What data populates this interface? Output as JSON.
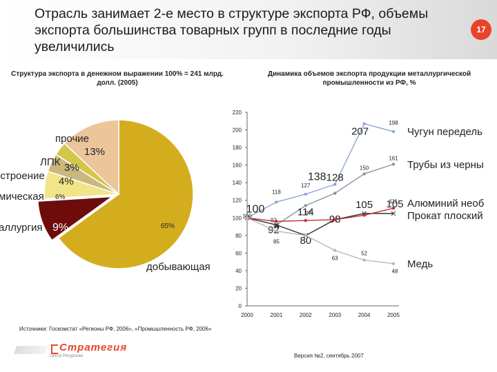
{
  "header": {
    "title": "Отрасль занимает 2-е место в структуре экспорта РФ, объемы экспорта большинства товарных групп в последние годы увеличились",
    "slide_number": "17"
  },
  "pie_subtitle": "Структура экспорта в денежном выражении 100% = 241 млрд. долл. (2005)",
  "line_subtitle": "Динамика объемов экспорта продукции металлургической промышленности из РФ, %",
  "chart_data": [
    {
      "type": "pie",
      "title": "Структура экспорта в денежном выражении 100% = 241 млрд. долл. (2005)",
      "slices": [
        {
          "label": "добывающая",
          "value": 65,
          "value_label": "65%",
          "color": "#d4ad1f"
        },
        {
          "label": "аллургия",
          "value": 9,
          "value_label": "9%",
          "color": "#6e0c0c"
        },
        {
          "label": "мическая",
          "value": 6,
          "value_label": "6%",
          "color": "#f1e489"
        },
        {
          "label": "остроение",
          "value": 4,
          "value_label": "4%",
          "color": "#c9b77e"
        },
        {
          "label": "ЛПК",
          "value": 3,
          "value_label": "3%",
          "color": "#d4c64a"
        },
        {
          "label": "прочие",
          "value": 13,
          "value_label": "13%",
          "color": "#ecc59a"
        }
      ]
    },
    {
      "type": "line",
      "title": "Динамика объемов экспорта продукции металлургической промышленности из РФ, %",
      "x": [
        "2000",
        "2001",
        "2002",
        "2003",
        "2004",
        "2005"
      ],
      "ylim": [
        0,
        220
      ],
      "yticks": [
        "0",
        "20",
        "40",
        "60",
        "80",
        "100",
        "120",
        "140",
        "160",
        "180",
        "200",
        "220"
      ],
      "series": [
        {
          "name": "Чугун передель",
          "color": "#8ea4d9",
          "values": [
            100,
            118,
            127,
            138,
            207,
            198
          ],
          "labels": [
            "100",
            "118",
            "127",
            "138",
            "207",
            "198"
          ]
        },
        {
          "name": "Трубы из черны",
          "color": "#8c93a6",
          "values": [
            100,
            92,
            114,
            128,
            150,
            161
          ],
          "labels": [
            "",
            "92",
            "114",
            "128",
            "150",
            "161"
          ]
        },
        {
          "name": "Алюминий необ",
          "color": "#333333",
          "values": [
            100,
            92,
            80,
            98,
            105,
            105
          ],
          "labels": [
            "",
            "92",
            "80",
            "98",
            "105",
            "105"
          ]
        },
        {
          "name": "Прокат плоский",
          "color": "#c42e3b",
          "values": [
            100,
            96,
            97,
            98,
            103,
            111
          ],
          "labels": [
            "",
            "96",
            "97",
            "",
            "",
            "111"
          ]
        },
        {
          "name": "Медь",
          "color": "#b7b7c0",
          "values": [
            100,
            85,
            80,
            63,
            52,
            48
          ],
          "labels": [
            "",
            "85",
            "",
            "63",
            "52",
            "48"
          ]
        }
      ]
    }
  ],
  "sources": "Источники: Госкомстат «Регионы РФ, 2006», «Промышленность РФ, 2006»",
  "version": "Версия №2, сентябрь 2007",
  "logo": {
    "name": "Стратегия",
    "tagline": "Центр Ресурсная"
  }
}
